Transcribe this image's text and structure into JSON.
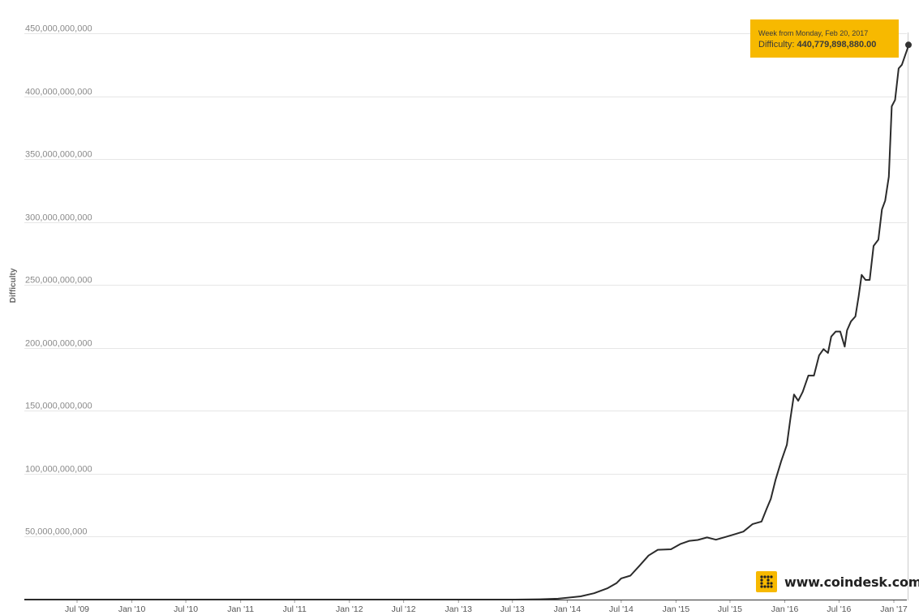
{
  "chart_data": {
    "type": "line",
    "ylabel": "Difficulty",
    "ylim": [
      0,
      450000000000
    ],
    "y_ticks": [
      {
        "value": 50000000000,
        "label": "50,000,000,000"
      },
      {
        "value": 100000000000,
        "label": "100,000,000,000"
      },
      {
        "value": 150000000000,
        "label": "150,000,000,000"
      },
      {
        "value": 200000000000,
        "label": "200,000,000,000"
      },
      {
        "value": 250000000000,
        "label": "250,000,000,000"
      },
      {
        "value": 300000000000,
        "label": "300,000,000,000"
      },
      {
        "value": 350000000000,
        "label": "350,000,000,000"
      },
      {
        "value": 400000000000,
        "label": "400,000,000,000"
      },
      {
        "value": 450000000000,
        "label": "450,000,000,000"
      }
    ],
    "x_ticks": [
      {
        "date": "2009-07-01",
        "label": "Jul '09"
      },
      {
        "date": "2010-01-01",
        "label": "Jan '10"
      },
      {
        "date": "2010-07-01",
        "label": "Jul '10"
      },
      {
        "date": "2011-01-01",
        "label": "Jan '11"
      },
      {
        "date": "2011-07-01",
        "label": "Jul '11"
      },
      {
        "date": "2012-01-01",
        "label": "Jan '12"
      },
      {
        "date": "2012-07-01",
        "label": "Jul '12"
      },
      {
        "date": "2013-01-01",
        "label": "Jan '13"
      },
      {
        "date": "2013-07-01",
        "label": "Jul '13"
      },
      {
        "date": "2014-01-01",
        "label": "Jan '14"
      },
      {
        "date": "2014-07-01",
        "label": "Jul '14"
      },
      {
        "date": "2015-01-01",
        "label": "Jan '15"
      },
      {
        "date": "2015-07-01",
        "label": "Jul '15"
      },
      {
        "date": "2016-01-01",
        "label": "Jan '16"
      },
      {
        "date": "2016-07-01",
        "label": "Jul '16"
      },
      {
        "date": "2017-01-01",
        "label": "Jan '17"
      }
    ],
    "series": [
      {
        "points": [
          [
            "2009-01-03",
            1
          ],
          [
            "2010-07-01",
            200
          ],
          [
            "2011-01-01",
            16000
          ],
          [
            "2011-07-01",
            1500000
          ],
          [
            "2012-01-01",
            1200000
          ],
          [
            "2012-07-01",
            1800000
          ],
          [
            "2013-01-01",
            3000000
          ],
          [
            "2013-07-01",
            30000000
          ],
          [
            "2013-10-01",
            270000000
          ],
          [
            "2013-12-01",
            700000000
          ],
          [
            "2014-01-01",
            1400000000
          ],
          [
            "2014-02-15",
            2600000000
          ],
          [
            "2014-04-01",
            5000000000
          ],
          [
            "2014-05-15",
            8900000000
          ],
          [
            "2014-06-15",
            13000000000
          ],
          [
            "2014-07-01",
            16800000000
          ],
          [
            "2014-08-01",
            19000000000
          ],
          [
            "2014-09-01",
            27000000000
          ],
          [
            "2014-10-01",
            35000000000
          ],
          [
            "2014-11-01",
            39600000000
          ],
          [
            "2014-12-15",
            40000000000
          ],
          [
            "2015-01-15",
            44100000000
          ],
          [
            "2015-02-15",
            46700000000
          ],
          [
            "2015-03-15",
            47400000000
          ],
          [
            "2015-04-15",
            49400000000
          ],
          [
            "2015-05-15",
            47600000000
          ],
          [
            "2015-06-15",
            49700000000
          ],
          [
            "2015-07-15",
            51800000000
          ],
          [
            "2015-08-15",
            54000000000
          ],
          [
            "2015-09-15",
            60000000000
          ],
          [
            "2015-10-15",
            62000000000
          ],
          [
            "2015-11-01",
            72000000000
          ],
          [
            "2015-11-15",
            80000000000
          ],
          [
            "2015-12-01",
            95000000000
          ],
          [
            "2015-12-20",
            110000000000
          ],
          [
            "2016-01-08",
            123000000000
          ],
          [
            "2016-01-20",
            144000000000
          ],
          [
            "2016-02-01",
            163000000000
          ],
          [
            "2016-02-15",
            158000000000
          ],
          [
            "2016-03-01",
            165000000000
          ],
          [
            "2016-03-20",
            178000000000
          ],
          [
            "2016-04-08",
            178000000000
          ],
          [
            "2016-04-25",
            194000000000
          ],
          [
            "2016-05-10",
            199000000000
          ],
          [
            "2016-05-25",
            196000000000
          ],
          [
            "2016-06-05",
            209000000000
          ],
          [
            "2016-06-20",
            213000000000
          ],
          [
            "2016-07-05",
            213000000000
          ],
          [
            "2016-07-20",
            201000000000
          ],
          [
            "2016-07-28",
            214000000000
          ],
          [
            "2016-08-10",
            221000000000
          ],
          [
            "2016-08-25",
            225000000000
          ],
          [
            "2016-09-05",
            241000000000
          ],
          [
            "2016-09-15",
            258000000000
          ],
          [
            "2016-09-28",
            254000000000
          ],
          [
            "2016-10-12",
            254000000000
          ],
          [
            "2016-10-25",
            281000000000
          ],
          [
            "2016-11-10",
            286000000000
          ],
          [
            "2016-11-22",
            310000000000
          ],
          [
            "2016-12-03",
            317000000000
          ],
          [
            "2016-12-15",
            336000000000
          ],
          [
            "2016-12-25",
            392000000000
          ],
          [
            "2017-01-05",
            397000000000
          ],
          [
            "2017-01-17",
            422000000000
          ],
          [
            "2017-01-28",
            425000000000
          ],
          [
            "2017-02-20",
            440779898880
          ]
        ]
      }
    ],
    "highlight": {
      "date": "2017-02-20",
      "value": 440779898880
    }
  },
  "tooltip": {
    "line1": "Week from Monday, Feb 20, 2017",
    "label": "Difficulty:",
    "value": "440,779,898,880.00"
  },
  "branding": {
    "text": "www.coindesk.com"
  },
  "colors": {
    "tooltip": "#f7b900",
    "line": "#2b2b2b",
    "grid": "#e6e6e6"
  }
}
